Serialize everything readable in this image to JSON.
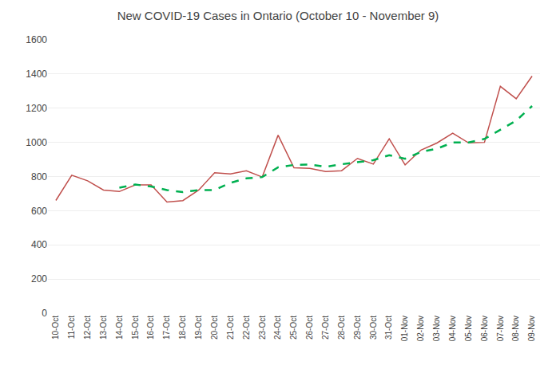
{
  "chart_data": {
    "type": "line",
    "title": "New COVID-19 Cases in Ontario (October 10 - November 9)",
    "categories": [
      "10-Oct",
      "11-Oct",
      "12-Oct",
      "13-Oct",
      "14-Oct",
      "15-Oct",
      "16-Oct",
      "17-Oct",
      "18-Oct",
      "19-Oct",
      "20-Oct",
      "21-Oct",
      "22-Oct",
      "23-Oct",
      "24-Oct",
      "25-Oct",
      "26-Oct",
      "27-Oct",
      "28-Oct",
      "29-Oct",
      "30-Oct",
      "31-Oct",
      "01-Nov",
      "02-Nov",
      "03-Nov",
      "04-Nov",
      "05-Nov",
      "06-Nov",
      "07-Nov",
      "08-Nov",
      "09-Nov"
    ],
    "series": [
      {
        "color": "#c0504d",
        "line_style": "solid",
        "values": [
          660,
          808,
          775,
          721,
          712,
          751,
          751,
          651,
          659,
          721,
          822,
          815,
          834,
          797,
          1042,
          851,
          848,
          829,
          834,
          906,
          873,
          1021,
          868,
          955,
          996,
          1054,
          997,
          1000,
          1328,
          1255,
          1388
        ]
      },
      {
        "color": "#00b050",
        "line_style": "dashed",
        "values": [
          null,
          null,
          null,
          null,
          735,
          753,
          742,
          721,
          709,
          721,
          721,
          763,
          789,
          797,
          854,
          868,
          870,
          857,
          872,
          883,
          896,
          925,
          904,
          944,
          963,
          999,
          1000,
          1020,
          1075,
          1127,
          1213
        ]
      }
    ],
    "ylim": [
      0,
      1600
    ],
    "yticks": [
      0,
      200,
      400,
      600,
      800,
      1000,
      1200,
      1400,
      1600
    ],
    "grid": true
  }
}
